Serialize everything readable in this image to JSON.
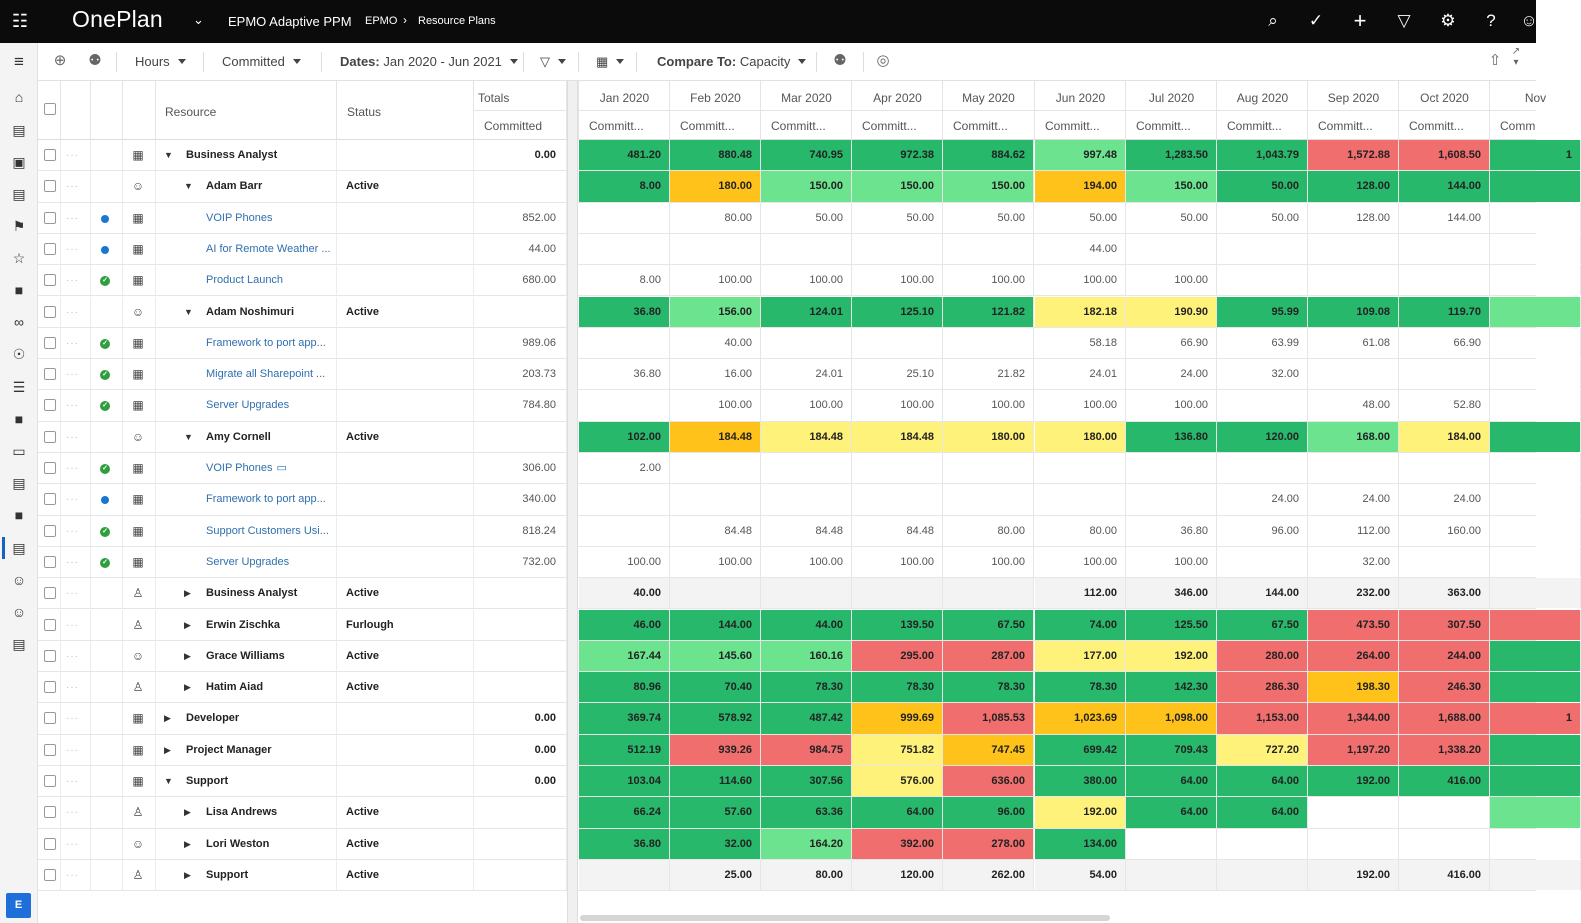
{
  "topbar": {
    "brand": "OnePlan",
    "app_name": "EPMO Adaptive PPM",
    "breadcrumb": [
      "EPMO",
      "Resource Plans"
    ],
    "icons": [
      "search-icon",
      "check-circle-icon",
      "plus-icon",
      "filter-icon",
      "gear-icon",
      "help-icon",
      "user-icon"
    ]
  },
  "rail": {
    "icons": [
      "menu-icon",
      "home-icon",
      "plans-icon",
      "briefcase-icon",
      "report-icon",
      "flag-icon",
      "star-icon",
      "folder-icon",
      "binoculars-icon",
      "lightbulb-icon",
      "document-icon",
      "folder-icon",
      "laptop-icon",
      "report-icon",
      "folder-icon",
      "resource-plan-icon",
      "people-icon",
      "user-icon",
      "report-icon"
    ],
    "avatar": "E"
  },
  "toolbar": {
    "units": "Hours",
    "mode": "Committed",
    "dates_label": "Dates:",
    "dates_value": "Jan 2020 - Jun 2021",
    "compare_label": "Compare To:",
    "compare_value": "Capacity"
  },
  "columns": {
    "resource": "Resource",
    "status": "Status",
    "totals": "Totals",
    "totals_sub": "Committed",
    "months": [
      "Jan 2020",
      "Feb 2020",
      "Mar 2020",
      "Apr 2020",
      "May 2020",
      "Jun 2020",
      "Jul 2020",
      "Aug 2020",
      "Sep 2020",
      "Oct 2020",
      "Nov"
    ],
    "month_sub": [
      "Committ...",
      "Committ...",
      "Committ...",
      "Committ...",
      "Committ...",
      "Committ...",
      "Committ...",
      "Committ...",
      "Committ...",
      "Committ...",
      "Comm"
    ]
  },
  "rows": [
    {
      "name": "Business Analyst",
      "level": 0,
      "exp": "down",
      "type": "role",
      "status": "",
      "total": "0.00",
      "marker": "",
      "vals": [
        "481.20",
        "880.48",
        "740.95",
        "972.38",
        "884.62",
        "997.48",
        "1,283.50",
        "1,043.79",
        "1,572.88",
        "1,608.50",
        "1"
      ],
      "cls": [
        "g1",
        "g1",
        "g1",
        "g1",
        "g1",
        "g2",
        "g1",
        "g1",
        "r1",
        "r1",
        "g1"
      ]
    },
    {
      "name": "Adam Barr",
      "level": 1,
      "exp": "down",
      "type": "person",
      "status": "Active",
      "total": "",
      "marker": "",
      "vals": [
        "8.00",
        "180.00",
        "150.00",
        "150.00",
        "150.00",
        "194.00",
        "150.00",
        "50.00",
        "128.00",
        "144.00",
        ""
      ],
      "cls": [
        "g1",
        "o1",
        "g2",
        "g2",
        "g2",
        "o1",
        "g2",
        "g1",
        "g1",
        "g1",
        "g1"
      ]
    },
    {
      "name": "VOIP Phones",
      "level": 2,
      "exp": "",
      "type": "project",
      "status": "",
      "total": "852.00",
      "marker": "dot",
      "vals": [
        "",
        "80.00",
        "50.00",
        "50.00",
        "50.00",
        "50.00",
        "50.00",
        "50.00",
        "128.00",
        "144.00",
        ""
      ],
      "cls": []
    },
    {
      "name": "AI for Remote Weather ...",
      "level": 2,
      "exp": "",
      "type": "project",
      "status": "",
      "total": "44.00",
      "marker": "dot",
      "vals": [
        "",
        "",
        "",
        "",
        "",
        "44.00",
        "",
        "",
        "",
        "",
        ""
      ],
      "cls": []
    },
    {
      "name": "Product Launch",
      "level": 2,
      "exp": "",
      "type": "project",
      "status": "",
      "total": "680.00",
      "marker": "check",
      "vals": [
        "8.00",
        "100.00",
        "100.00",
        "100.00",
        "100.00",
        "100.00",
        "100.00",
        "",
        "",
        "",
        ""
      ],
      "cls": []
    },
    {
      "name": "Adam Noshimuri",
      "level": 1,
      "exp": "down",
      "type": "person",
      "status": "Active",
      "total": "",
      "marker": "",
      "vals": [
        "36.80",
        "156.00",
        "124.01",
        "125.10",
        "121.82",
        "182.18",
        "190.90",
        "95.99",
        "109.08",
        "119.70",
        ""
      ],
      "cls": [
        "g1",
        "g2",
        "g1",
        "g1",
        "g1",
        "y1",
        "y1",
        "g1",
        "g1",
        "g1",
        "g2"
      ]
    },
    {
      "name": "Framework to port app...",
      "level": 2,
      "exp": "",
      "type": "project",
      "status": "",
      "total": "989.06",
      "marker": "check",
      "vals": [
        "",
        "40.00",
        "",
        "",
        "",
        "58.18",
        "66.90",
        "63.99",
        "61.08",
        "66.90",
        ""
      ],
      "cls": []
    },
    {
      "name": "Migrate all Sharepoint ...",
      "level": 2,
      "exp": "",
      "type": "project",
      "status": "",
      "total": "203.73",
      "marker": "check",
      "vals": [
        "36.80",
        "16.00",
        "24.01",
        "25.10",
        "21.82",
        "24.01",
        "24.00",
        "32.00",
        "",
        "",
        ""
      ],
      "cls": []
    },
    {
      "name": "Server Upgrades",
      "level": 2,
      "exp": "",
      "type": "project",
      "status": "",
      "total": "784.80",
      "marker": "check",
      "vals": [
        "",
        "100.00",
        "100.00",
        "100.00",
        "100.00",
        "100.00",
        "100.00",
        "",
        "48.00",
        "52.80",
        ""
      ],
      "cls": []
    },
    {
      "name": "Amy Cornell",
      "level": 1,
      "exp": "down",
      "type": "person",
      "status": "Active",
      "total": "",
      "marker": "",
      "vals": [
        "102.00",
        "184.48",
        "184.48",
        "184.48",
        "180.00",
        "180.00",
        "136.80",
        "120.00",
        "168.00",
        "184.00",
        ""
      ],
      "cls": [
        "g1",
        "o1",
        "y1",
        "y1",
        "y1",
        "y1",
        "g1",
        "g1",
        "g2",
        "y1",
        "g1"
      ]
    },
    {
      "name": "VOIP Phones",
      "level": 2,
      "exp": "",
      "type": "project",
      "status": "",
      "total": "306.00",
      "marker": "check",
      "note": true,
      "vals": [
        "2.00",
        "",
        "",
        "",
        "",
        "",
        "",
        "",
        "",
        "",
        ""
      ],
      "cls": []
    },
    {
      "name": "Framework to port app...",
      "level": 2,
      "exp": "",
      "type": "project",
      "status": "",
      "total": "340.00",
      "marker": "dot",
      "vals": [
        "",
        "",
        "",
        "",
        "",
        "",
        "",
        "24.00",
        "24.00",
        "24.00",
        ""
      ],
      "cls": []
    },
    {
      "name": "Support Customers Usi...",
      "level": 2,
      "exp": "",
      "type": "project",
      "status": "",
      "total": "818.24",
      "marker": "check",
      "vals": [
        "",
        "84.48",
        "84.48",
        "84.48",
        "80.00",
        "80.00",
        "36.80",
        "96.00",
        "112.00",
        "160.00",
        ""
      ],
      "cls": []
    },
    {
      "name": "Server Upgrades",
      "level": 2,
      "exp": "",
      "type": "project",
      "status": "",
      "total": "732.00",
      "marker": "check",
      "vals": [
        "100.00",
        "100.00",
        "100.00",
        "100.00",
        "100.00",
        "100.00",
        "100.00",
        "",
        "32.00",
        "",
        ""
      ],
      "cls": []
    },
    {
      "name": "Business Analyst",
      "level": 1,
      "exp": "right",
      "type": "generic",
      "status": "Active",
      "total": "",
      "marker": "",
      "vals": [
        "40.00",
        "",
        "",
        "",
        "",
        "112.00",
        "346.00",
        "144.00",
        "232.00",
        "363.00",
        ""
      ],
      "cls": [
        "gr",
        "gr",
        "gr",
        "gr",
        "gr",
        "gr",
        "gr",
        "gr",
        "gr",
        "gr",
        "gr"
      ]
    },
    {
      "name": "Erwin Zischka",
      "level": 1,
      "exp": "right",
      "type": "generic",
      "status": "Furlough",
      "total": "",
      "marker": "",
      "vals": [
        "46.00",
        "144.00",
        "44.00",
        "139.50",
        "67.50",
        "74.00",
        "125.50",
        "67.50",
        "473.50",
        "307.50",
        ""
      ],
      "cls": [
        "g1",
        "g1",
        "g1",
        "g1",
        "g1",
        "g1",
        "g1",
        "g1",
        "r1",
        "r1",
        "r1"
      ]
    },
    {
      "name": "Grace Williams",
      "level": 1,
      "exp": "right",
      "type": "person",
      "status": "Active",
      "total": "",
      "marker": "",
      "vals": [
        "167.44",
        "145.60",
        "160.16",
        "295.00",
        "287.00",
        "177.00",
        "192.00",
        "280.00",
        "264.00",
        "244.00",
        ""
      ],
      "cls": [
        "g2",
        "g2",
        "g2",
        "r1",
        "r1",
        "y1",
        "y1",
        "r1",
        "r1",
        "r1",
        "g1"
      ]
    },
    {
      "name": "Hatim Aiad",
      "level": 1,
      "exp": "right",
      "type": "generic",
      "status": "Active",
      "total": "",
      "marker": "",
      "vals": [
        "80.96",
        "70.40",
        "78.30",
        "78.30",
        "78.30",
        "78.30",
        "142.30",
        "286.30",
        "198.30",
        "246.30",
        ""
      ],
      "cls": [
        "g1",
        "g1",
        "g1",
        "g1",
        "g1",
        "g1",
        "g1",
        "r1",
        "o1",
        "r1",
        "g1"
      ]
    },
    {
      "name": "Developer",
      "level": 0,
      "exp": "right",
      "type": "role",
      "status": "",
      "total": "0.00",
      "marker": "",
      "vals": [
        "369.74",
        "578.92",
        "487.42",
        "999.69",
        "1,085.53",
        "1,023.69",
        "1,098.00",
        "1,153.00",
        "1,344.00",
        "1,688.00",
        "1"
      ],
      "cls": [
        "g1",
        "g1",
        "g1",
        "o1",
        "r1",
        "o1",
        "o1",
        "r1",
        "r1",
        "r1",
        "r1"
      ]
    },
    {
      "name": "Project Manager",
      "level": 0,
      "exp": "right",
      "type": "role",
      "status": "",
      "total": "0.00",
      "marker": "",
      "vals": [
        "512.19",
        "939.26",
        "984.75",
        "751.82",
        "747.45",
        "699.42",
        "709.43",
        "727.20",
        "1,197.20",
        "1,338.20",
        ""
      ],
      "cls": [
        "g1",
        "r1",
        "r1",
        "y1",
        "o1",
        "g1",
        "g1",
        "y1",
        "r1",
        "r1",
        "g1"
      ]
    },
    {
      "name": "Support",
      "level": 0,
      "exp": "down",
      "type": "role",
      "status": "",
      "total": "0.00",
      "marker": "",
      "vals": [
        "103.04",
        "114.60",
        "307.56",
        "576.00",
        "636.00",
        "380.00",
        "64.00",
        "64.00",
        "192.00",
        "416.00",
        ""
      ],
      "cls": [
        "g1",
        "g1",
        "g1",
        "y1",
        "r1",
        "g1",
        "g1",
        "g1",
        "g1",
        "g1",
        "g1"
      ]
    },
    {
      "name": "Lisa Andrews",
      "level": 1,
      "exp": "right",
      "type": "generic",
      "status": "Active",
      "total": "",
      "marker": "",
      "vals": [
        "66.24",
        "57.60",
        "63.36",
        "64.00",
        "96.00",
        "192.00",
        "64.00",
        "64.00",
        "",
        "",
        ""
      ],
      "cls": [
        "g1",
        "g1",
        "g1",
        "g1",
        "g1",
        "y1",
        "g1",
        "g1",
        "",
        "",
        "g2"
      ]
    },
    {
      "name": "Lori Weston",
      "level": 1,
      "exp": "right",
      "type": "person",
      "status": "Active",
      "total": "",
      "marker": "",
      "vals": [
        "36.80",
        "32.00",
        "164.20",
        "392.00",
        "278.00",
        "134.00",
        "",
        "",
        "",
        "",
        ""
      ],
      "cls": [
        "g1",
        "g1",
        "g2",
        "r1",
        "r1",
        "g1",
        "",
        "",
        "",
        "",
        ""
      ]
    },
    {
      "name": "Support",
      "level": 1,
      "exp": "right",
      "type": "generic",
      "status": "Active",
      "total": "",
      "marker": "",
      "vals": [
        "",
        "25.00",
        "80.00",
        "120.00",
        "262.00",
        "54.00",
        "",
        "",
        "192.00",
        "416.00",
        ""
      ],
      "cls": [
        "gr",
        "gr",
        "gr",
        "gr",
        "gr",
        "gr",
        "gr",
        "gr",
        "gr",
        "gr",
        "gr"
      ]
    }
  ]
}
